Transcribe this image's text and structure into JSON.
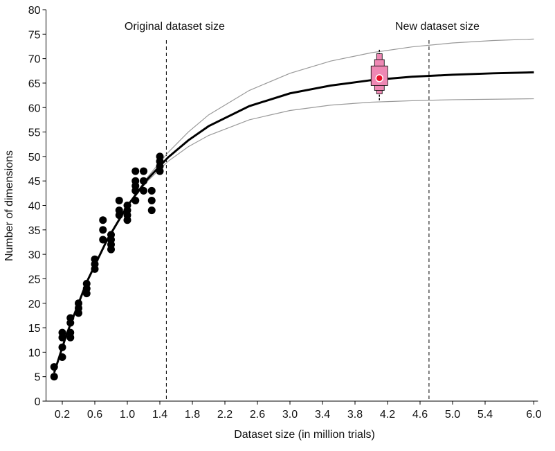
{
  "chart_data": {
    "type": "scatter",
    "xlabel": "Dataset size (in million trials)",
    "ylabel": "Number of dimensions",
    "xlim": [
      0,
      6.05
    ],
    "ylim": [
      0,
      80
    ],
    "xticks": [
      0.2,
      0.6,
      {
        "value": 1.0,
        "label": "1.0"
      },
      1.4,
      1.8,
      2.2,
      2.6,
      {
        "value": 3.0,
        "label": "3.0"
      },
      3.4,
      3.8,
      4.2,
      4.6,
      {
        "value": 5.0,
        "label": "5.0"
      },
      5.4,
      {
        "value": 6.0,
        "label": "6.0"
      }
    ],
    "yticks": [
      0,
      5,
      10,
      15,
      20,
      25,
      30,
      35,
      40,
      45,
      50,
      55,
      60,
      65,
      70,
      75,
      80
    ],
    "points": {
      "color": "#000000",
      "x": [
        0.1,
        0.1,
        0.2,
        0.2,
        0.2,
        0.2,
        0.3,
        0.3,
        0.3,
        0.3,
        0.4,
        0.4,
        0.4,
        0.5,
        0.5,
        0.5,
        0.6,
        0.6,
        0.6,
        0.7,
        0.7,
        0.7,
        0.8,
        0.8,
        0.8,
        0.8,
        0.9,
        0.9,
        0.9,
        1.0,
        1.0,
        1.0,
        1.0,
        1.1,
        1.1,
        1.1,
        1.1,
        1.1,
        1.2,
        1.2,
        1.2,
        1.3,
        1.3,
        1.3,
        1.4,
        1.4,
        1.4,
        1.4
      ],
      "y": [
        7,
        5,
        14,
        13,
        11,
        9,
        17,
        16,
        14,
        13,
        20,
        19,
        18,
        24,
        23,
        22,
        29,
        28,
        27,
        37,
        35,
        33,
        34,
        33,
        32,
        31,
        41,
        39,
        38,
        40,
        39,
        38,
        37,
        47,
        45,
        44,
        43,
        41,
        47,
        45,
        43,
        43,
        41,
        39,
        50,
        49,
        48,
        47
      ]
    },
    "curves": {
      "x": [
        0.1,
        0.25,
        0.5,
        0.75,
        1.0,
        1.25,
        1.5,
        1.75,
        2.0,
        2.5,
        3.0,
        3.5,
        4.0,
        4.5,
        5.0,
        5.5,
        6.0
      ],
      "series": [
        {
          "style": "bound",
          "color": "#999999",
          "values": [
            5.8,
            13.5,
            24.3,
            33,
            40,
            45.8,
            50.8,
            55,
            58.5,
            63.5,
            67,
            69.5,
            71.2,
            72.4,
            73.2,
            73.7,
            74
          ]
        },
        {
          "style": "bound",
          "color": "#999999",
          "values": [
            5.8,
            13.5,
            24.3,
            32.9,
            39.8,
            45,
            49,
            52,
            54.3,
            57.5,
            59.4,
            60.5,
            61.1,
            61.4,
            61.6,
            61.7,
            61.8
          ]
        },
        {
          "style": "fit",
          "color": "#000000",
          "values": [
            5.8,
            13.5,
            24.3,
            32.9,
            39.9,
            45.4,
            49.8,
            53.3,
            56.2,
            60.3,
            62.9,
            64.5,
            65.6,
            66.3,
            66.7,
            67.0,
            67.2
          ]
        }
      ]
    },
    "vlines": [
      {
        "x": 1.48,
        "label": "Original dataset size"
      },
      {
        "x": 4.71,
        "label": "New dataset size"
      }
    ],
    "boxen": {
      "x": 4.1,
      "median": 66,
      "color": "#ee88b4",
      "median_color": "#e8102a",
      "whisker": [
        61.5,
        71.8
      ],
      "boxes": [
        {
          "low": 64.5,
          "high": 68.5
        },
        {
          "low": 63.5,
          "high": 69.8
        },
        {
          "low": 62.8,
          "high": 71
        }
      ]
    }
  }
}
